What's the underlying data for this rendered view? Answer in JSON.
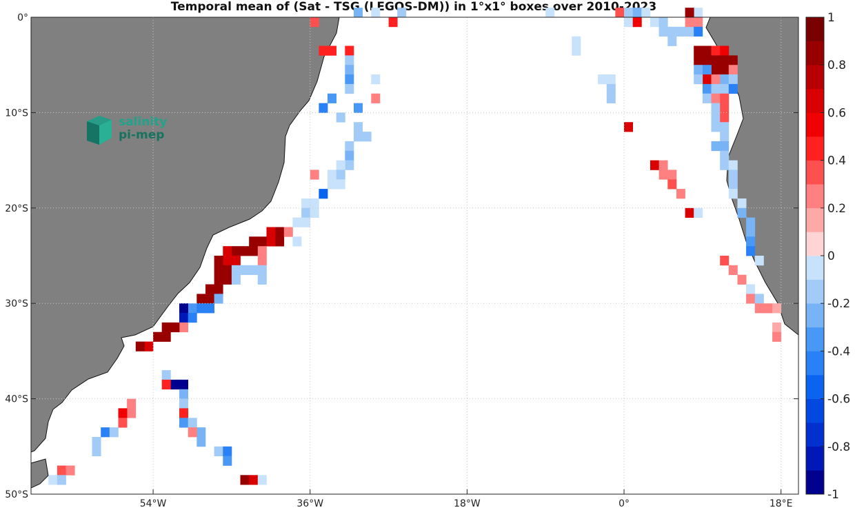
{
  "title": "Temporal mean of (Sat - TSG (LEGOS-DM)) in 1°x1° boxes over 2010-2023",
  "logo": {
    "line1": "salinity",
    "line2": "pi-mep"
  },
  "colors": {
    "land": "#808080",
    "grid": "#c8c8c8",
    "frame": "#222222"
  },
  "chart_data": {
    "type": "heatmap",
    "title": "Temporal mean of (Sat - TSG (LEGOS-DM)) in 1°x1° boxes over 2010-2023",
    "x_axis": {
      "range": [
        -68,
        20
      ],
      "ticks": [
        -54,
        -36,
        -18,
        0,
        18
      ],
      "tick_labels": [
        "54°W",
        "36°W",
        "18°W",
        "0°",
        "18°E"
      ]
    },
    "y_axis": {
      "range": [
        -50,
        0
      ],
      "ticks": [
        0,
        -10,
        -20,
        -30,
        -40,
        -50
      ],
      "tick_labels": [
        "0°",
        "10°S",
        "20°S",
        "30°S",
        "40°S",
        "50°S"
      ]
    },
    "grid": true,
    "colorbar": {
      "range": [
        -1,
        1
      ],
      "ticks": [
        1,
        0.8,
        0.6,
        0.4,
        0.2,
        0,
        -0.2,
        -0.4,
        -0.6,
        -0.8,
        -1
      ],
      "tick_labels": [
        "1",
        "0.8",
        "0.6",
        "0.4",
        "0.2",
        "0",
        "-0.2",
        "-0.4",
        "-0.6",
        "-0.8",
        "-1"
      ],
      "levels": 20,
      "scheme": "blue-white-red"
    },
    "cells": [
      [
        -36,
        -1,
        0.3
      ],
      [
        -34,
        -4,
        0.4
      ],
      [
        -35,
        -4,
        0.4
      ],
      [
        -32,
        -4,
        0.4
      ],
      [
        -32,
        -5,
        -0.2
      ],
      [
        -32,
        -6,
        -0.3
      ],
      [
        -32,
        -7,
        -0.4
      ],
      [
        -29,
        -7,
        -0.1
      ],
      [
        -32,
        -8,
        -0.2
      ],
      [
        -29,
        -9,
        0.2
      ],
      [
        -34,
        -9,
        -0.4
      ],
      [
        -35,
        -10,
        -0.5
      ],
      [
        -31,
        -10,
        -0.4
      ],
      [
        -33,
        -11,
        -0.2
      ],
      [
        -31,
        -12,
        -0.2
      ],
      [
        -31,
        -13,
        -0.2
      ],
      [
        -30,
        -13,
        -0.2
      ],
      [
        -32,
        -14,
        -0.2
      ],
      [
        -32,
        -15,
        -0.3
      ],
      [
        -32,
        -16,
        -0.2
      ],
      [
        -33,
        -16,
        -0.1
      ],
      [
        -34,
        -17,
        -0.1
      ],
      [
        -33,
        -17,
        -0.2
      ],
      [
        -36,
        -17,
        0.2
      ],
      [
        -34,
        -18,
        -0.1
      ],
      [
        -33,
        -18,
        -0.1
      ],
      [
        -35,
        -19,
        -0.6
      ],
      [
        -37,
        -20,
        -0.1
      ],
      [
        -36,
        -20,
        -0.1
      ],
      [
        -37,
        -21,
        -0.2
      ],
      [
        -36,
        -21,
        -0.1
      ],
      [
        -38,
        -22,
        -0.1
      ],
      [
        -37,
        -22,
        -0.1
      ],
      [
        -40,
        -23,
        0.8
      ],
      [
        -41,
        -23,
        0.6
      ],
      [
        -39,
        -23,
        0.2
      ],
      [
        -40,
        -24,
        0.8
      ],
      [
        -41,
        -24,
        0.6
      ],
      [
        -42,
        -24,
        0.8
      ],
      [
        -43,
        -24,
        0.8
      ],
      [
        -38,
        -24,
        -0.1
      ],
      [
        -43,
        -25,
        0.8
      ],
      [
        -44,
        -25,
        0.8
      ],
      [
        -45,
        -25,
        0.8
      ],
      [
        -46,
        -25,
        0.6
      ],
      [
        -42,
        -25,
        0.2
      ],
      [
        -42,
        -26,
        0.2
      ],
      [
        -45,
        -26,
        0.6
      ],
      [
        -46,
        -26,
        0.6
      ],
      [
        -47,
        -26,
        0.8
      ],
      [
        -46,
        -27,
        0.8
      ],
      [
        -47,
        -27,
        0.8
      ],
      [
        -45,
        -27,
        -0.2
      ],
      [
        -44,
        -27,
        -0.2
      ],
      [
        -43,
        -27,
        -0.2
      ],
      [
        -42,
        -27,
        -0.2
      ],
      [
        -47,
        -28,
        0.8
      ],
      [
        -46,
        -28,
        0.8
      ],
      [
        -45,
        -28,
        -0.2
      ],
      [
        -42,
        -28,
        -0.2
      ],
      [
        -47,
        -29,
        0.8
      ],
      [
        -48,
        -29,
        0.8
      ],
      [
        -48,
        -30,
        0.8
      ],
      [
        -49,
        -30,
        0.8
      ],
      [
        -47,
        -30,
        -0.3
      ],
      [
        -50,
        -31,
        -0.4
      ],
      [
        -49,
        -31,
        -0.5
      ],
      [
        -48,
        -31,
        -0.5
      ],
      [
        -51,
        -31,
        -0.9
      ],
      [
        -51,
        -32,
        -0.8
      ],
      [
        -50,
        -32,
        -0.5
      ],
      [
        -51,
        -33,
        0.2
      ],
      [
        -53,
        -33,
        0.8
      ],
      [
        -52,
        -33,
        0.8
      ],
      [
        -53,
        -34,
        0.8
      ],
      [
        -54,
        -34,
        0.8
      ],
      [
        -55,
        -35,
        0.6
      ],
      [
        -56,
        -35,
        0.8
      ],
      [
        -53,
        -38,
        -0.2
      ],
      [
        -52,
        -39,
        -0.9
      ],
      [
        -51,
        -39,
        -0.9
      ],
      [
        -53,
        -39,
        0.4
      ],
      [
        -51,
        -40,
        -0.3
      ],
      [
        -51,
        -41,
        -0.2
      ],
      [
        -51,
        -42,
        0.4
      ],
      [
        -57,
        -41,
        0.2
      ],
      [
        -57,
        -42,
        0.2
      ],
      [
        -58,
        -42,
        0.5
      ],
      [
        -58,
        -43,
        0.3
      ],
      [
        -51,
        -43,
        -0.4
      ],
      [
        -50,
        -43,
        -0.2
      ],
      [
        -49,
        -44,
        -0.3
      ],
      [
        -50,
        -44,
        0.2
      ],
      [
        -60,
        -44,
        -0.5
      ],
      [
        -59,
        -44,
        -0.2
      ],
      [
        -61,
        -45,
        -0.2
      ],
      [
        -49,
        -45,
        -0.3
      ],
      [
        -61,
        -46,
        -0.2
      ],
      [
        -47,
        -46,
        -0.2
      ],
      [
        -46,
        -46,
        -0.5
      ],
      [
        -46,
        -47,
        -0.4
      ],
      [
        -65,
        -48,
        0.3
      ],
      [
        -64,
        -48,
        0.2
      ],
      [
        -66,
        -49,
        -0.1
      ],
      [
        -65,
        -49,
        -0.2
      ],
      [
        -44,
        -49,
        0.8
      ],
      [
        -43,
        -49,
        0.6
      ],
      [
        -42,
        -49,
        -0.1
      ],
      [
        -31,
        0,
        -0.3
      ],
      [
        -29,
        0,
        -0.1
      ],
      [
        -27,
        -1,
        0.4
      ],
      [
        -26,
        0,
        -0.2
      ],
      [
        -9,
        0,
        -0.1
      ],
      [
        -1,
        0,
        0.3
      ],
      [
        0,
        0,
        -0.2
      ],
      [
        0,
        -1,
        -0.1
      ],
      [
        1,
        0,
        -0.3
      ],
      [
        1,
        -1,
        0.5
      ],
      [
        2,
        0,
        -0.1
      ],
      [
        3,
        -1,
        -0.1
      ],
      [
        4,
        -1,
        -0.2
      ],
      [
        4,
        -2,
        -0.2
      ],
      [
        5,
        -2,
        -0.2
      ],
      [
        6,
        -2,
        -0.2
      ],
      [
        7,
        -2,
        -0.2
      ],
      [
        5,
        -3,
        -0.2
      ],
      [
        7,
        -1,
        0.2
      ],
      [
        8,
        -1,
        0.2
      ],
      [
        8,
        0,
        -0.1
      ],
      [
        7,
        0,
        0.8
      ],
      [
        8,
        -2,
        -0.5
      ],
      [
        -6,
        -3,
        -0.1
      ],
      [
        -6,
        -4,
        -0.1
      ],
      [
        -3,
        -7,
        -0.1
      ],
      [
        -2,
        -7,
        -0.1
      ],
      [
        -2,
        -8,
        -0.2
      ],
      [
        -2,
        -9,
        -0.2
      ],
      [
        0,
        -12,
        0.6
      ],
      [
        8,
        -4,
        0.8
      ],
      [
        9,
        -4,
        0.8
      ],
      [
        9,
        -5,
        0.8
      ],
      [
        10,
        -4,
        0.4
      ],
      [
        11,
        -4,
        0.5
      ],
      [
        11,
        -5,
        0.8
      ],
      [
        12,
        -5,
        0.8
      ],
      [
        8,
        -5,
        0.8
      ],
      [
        10,
        -5,
        0.8
      ],
      [
        10,
        -6,
        0.8
      ],
      [
        11,
        -6,
        0.8
      ],
      [
        12,
        -6,
        0.2
      ],
      [
        8,
        -6,
        -0.3
      ],
      [
        9,
        -6,
        -0.4
      ],
      [
        9,
        -7,
        0.6
      ],
      [
        8,
        -7,
        -0.2
      ],
      [
        11,
        -7,
        -0.3
      ],
      [
        12,
        -7,
        -0.2
      ],
      [
        10,
        -7,
        0.2
      ],
      [
        9,
        -8,
        -0.4
      ],
      [
        10,
        -8,
        -0.2
      ],
      [
        11,
        -8,
        -0.2
      ],
      [
        12,
        -8,
        -0.5
      ],
      [
        9,
        -9,
        -0.2
      ],
      [
        10,
        -9,
        0.2
      ],
      [
        11,
        -9,
        0.3
      ],
      [
        10,
        -10,
        -0.2
      ],
      [
        11,
        -10,
        0.3
      ],
      [
        10,
        -11,
        -0.2
      ],
      [
        11,
        -11,
        0.3
      ],
      [
        10,
        -12,
        -0.2
      ],
      [
        11,
        -12,
        -0.2
      ],
      [
        11,
        -13,
        -0.2
      ],
      [
        10,
        -14,
        -0.3
      ],
      [
        11,
        -14,
        -0.3
      ],
      [
        11,
        -15,
        -0.2
      ],
      [
        11,
        -16,
        -0.2
      ],
      [
        12,
        -16,
        -0.1
      ],
      [
        12,
        -17,
        -0.2
      ],
      [
        12,
        -18,
        -0.2
      ],
      [
        12,
        -19,
        -0.1
      ],
      [
        13,
        -20,
        -0.1
      ],
      [
        13,
        -21,
        -0.3
      ],
      [
        14,
        -22,
        -0.3
      ],
      [
        14,
        -23,
        -0.3
      ],
      [
        14,
        -24,
        -0.4
      ],
      [
        14,
        -25,
        -0.5
      ],
      [
        15,
        -26,
        -0.1
      ],
      [
        3,
        -16,
        0.6
      ],
      [
        4,
        -16,
        0.2
      ],
      [
        4,
        -17,
        0.2
      ],
      [
        5,
        -17,
        0.2
      ],
      [
        5,
        -18,
        0.3
      ],
      [
        6,
        -19,
        0.2
      ],
      [
        7,
        -21,
        0.6
      ],
      [
        8,
        -21,
        -0.1
      ],
      [
        11,
        -26,
        0.3
      ],
      [
        12,
        -27,
        0.2
      ],
      [
        13,
        -28,
        0.2
      ],
      [
        14,
        -29,
        -0.1
      ],
      [
        14,
        -30,
        0.2
      ],
      [
        15,
        -30,
        -0.2
      ],
      [
        15,
        -31,
        0.2
      ],
      [
        16,
        -31,
        0.2
      ],
      [
        17,
        -31,
        0.1
      ],
      [
        17,
        -33,
        0.1
      ],
      [
        17,
        -34,
        0.2
      ]
    ]
  }
}
